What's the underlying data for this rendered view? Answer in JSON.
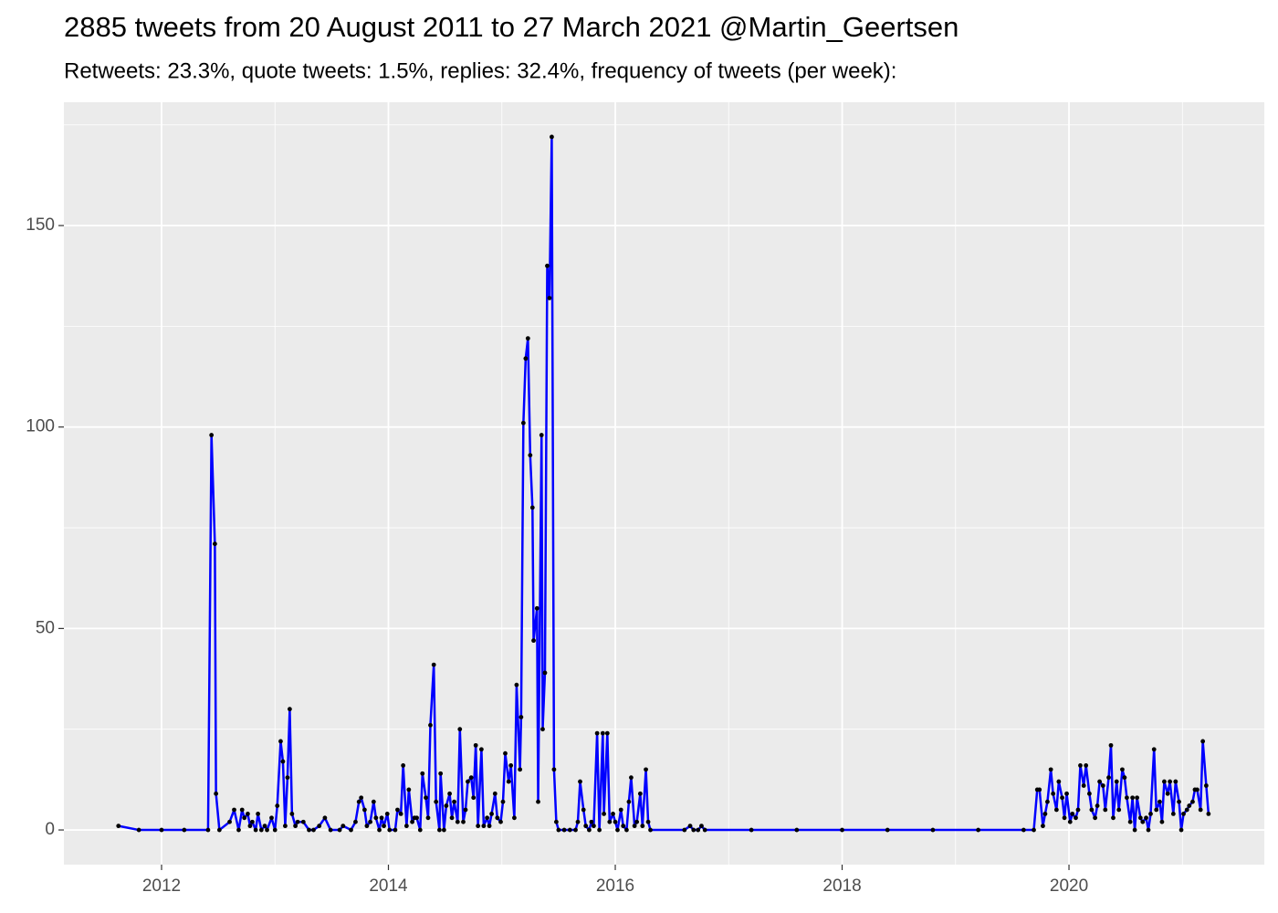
{
  "chart_data": {
    "type": "line",
    "title": "2885 tweets from 20 August 2011 to 27 March 2021 @Martin_Geertsen",
    "subtitle": "Retweets: 23.3%, quote tweets: 1.5%, replies: 32.4%, frequency of tweets (per week):",
    "x": [
      2011.62,
      2011.8,
      2012.0,
      2012.2,
      2012.41,
      2012.44,
      2012.47,
      2012.48,
      2012.51,
      2012.6,
      2012.64,
      2012.68,
      2012.71,
      2012.73,
      2012.76,
      2012.78,
      2012.8,
      2012.83,
      2012.85,
      2012.88,
      2012.91,
      2012.93,
      2012.97,
      2013.0,
      2013.02,
      2013.05,
      2013.07,
      2013.09,
      2013.11,
      2013.13,
      2013.15,
      2013.18,
      2013.2,
      2013.25,
      2013.3,
      2013.34,
      2013.39,
      2013.44,
      2013.49,
      2013.57,
      2013.6,
      2013.67,
      2013.71,
      2013.74,
      2013.76,
      2013.79,
      2013.81,
      2013.84,
      2013.87,
      2013.89,
      2013.92,
      2013.94,
      2013.96,
      2013.99,
      2014.01,
      2014.06,
      2014.08,
      2014.11,
      2014.13,
      2014.16,
      2014.18,
      2014.21,
      2014.23,
      2014.25,
      2014.28,
      2014.3,
      2014.33,
      2014.35,
      2014.37,
      2014.4,
      2014.42,
      2014.45,
      2014.46,
      2014.49,
      2014.51,
      2014.54,
      2014.56,
      2014.58,
      2014.61,
      2014.63,
      2014.66,
      2014.68,
      2014.7,
      2014.73,
      2014.75,
      2014.77,
      2014.79,
      2014.82,
      2014.84,
      2014.87,
      2014.89,
      2014.91,
      2014.94,
      2014.96,
      2014.99,
      2015.01,
      2015.03,
      2015.06,
      2015.08,
      2015.11,
      2015.13,
      2015.16,
      2015.17,
      2015.19,
      2015.21,
      2015.23,
      2015.25,
      2015.27,
      2015.28,
      2015.31,
      2015.32,
      2015.35,
      2015.36,
      2015.38,
      2015.4,
      2015.42,
      2015.44,
      2015.46,
      2015.48,
      2015.5,
      2015.55,
      2015.6,
      2015.65,
      2015.67,
      2015.69,
      2015.72,
      2015.74,
      2015.77,
      2015.79,
      2015.81,
      2015.84,
      2015.86,
      2015.89,
      2015.9,
      2015.93,
      2015.95,
      2015.98,
      2016.0,
      2016.02,
      2016.05,
      2016.07,
      2016.1,
      2016.12,
      2016.14,
      2016.17,
      2016.19,
      2016.22,
      2016.24,
      2016.27,
      2016.29,
      2016.31,
      2016.61,
      2016.66,
      2016.69,
      2016.73,
      2016.76,
      2016.79,
      2017.2,
      2017.6,
      2018.0,
      2018.4,
      2018.8,
      2019.2,
      2019.6,
      2019.69,
      2019.72,
      2019.74,
      2019.77,
      2019.79,
      2019.81,
      2019.84,
      2019.86,
      2019.89,
      2019.91,
      2019.94,
      2019.96,
      2019.98,
      2020.01,
      2020.03,
      2020.06,
      2020.08,
      2020.1,
      2020.13,
      2020.15,
      2020.18,
      2020.2,
      2020.23,
      2020.25,
      2020.27,
      2020.3,
      2020.32,
      2020.35,
      2020.37,
      2020.39,
      2020.42,
      2020.44,
      2020.47,
      2020.49,
      2020.51,
      2020.54,
      2020.56,
      2020.58,
      2020.6,
      2020.63,
      2020.65,
      2020.68,
      2020.7,
      2020.72,
      2020.75,
      2020.77,
      2020.8,
      2020.82,
      2020.84,
      2020.87,
      2020.89,
      2020.92,
      2020.94,
      2020.97,
      2020.99,
      2021.01,
      2021.04,
      2021.06,
      2021.09,
      2021.11,
      2021.13,
      2021.16,
      2021.18,
      2021.21,
      2021.23
    ],
    "values": [
      1,
      0,
      0,
      0,
      0,
      98,
      71,
      9,
      0,
      2,
      5,
      0,
      5,
      3,
      4,
      1,
      2,
      0,
      4,
      0,
      1,
      0,
      3,
      0,
      6,
      22,
      17,
      1,
      13,
      30,
      4,
      1,
      2,
      2,
      0,
      0,
      1,
      3,
      0,
      0,
      1,
      0,
      2,
      7,
      8,
      5,
      1,
      2,
      7,
      3,
      0,
      3,
      1,
      4,
      0,
      0,
      5,
      4,
      16,
      1,
      10,
      2,
      3,
      3,
      0,
      14,
      8,
      3,
      26,
      41,
      7,
      0,
      14,
      0,
      6,
      9,
      3,
      7,
      2,
      25,
      2,
      5,
      12,
      13,
      8,
      21,
      1,
      20,
      1,
      3,
      1,
      4,
      9,
      3,
      2,
      7,
      19,
      12,
      16,
      3,
      36,
      15,
      28,
      101,
      117,
      122,
      93,
      80,
      47,
      55,
      7,
      98,
      25,
      39,
      140,
      132,
      172,
      15,
      2,
      0,
      0,
      0,
      0,
      2,
      12,
      5,
      1,
      0,
      2,
      1,
      24,
      0,
      24,
      4,
      24,
      2,
      4,
      2,
      0,
      5,
      1,
      0,
      7,
      13,
      1,
      2,
      9,
      1,
      15,
      2,
      0,
      0,
      1,
      0,
      0,
      1,
      0,
      0,
      0,
      0,
      0,
      0,
      0,
      0,
      0,
      10,
      10,
      1,
      4,
      7,
      15,
      9,
      5,
      12,
      8,
      3,
      9,
      2,
      4,
      3,
      5,
      16,
      11,
      16,
      9,
      5,
      3,
      6,
      12,
      11,
      5,
      13,
      21,
      3,
      12,
      5,
      15,
      13,
      8,
      2,
      8,
      0,
      8,
      3,
      2,
      3,
      0,
      4,
      20,
      5,
      7,
      2,
      12,
      9,
      12,
      4,
      12,
      7,
      0,
      4,
      5,
      6,
      7,
      10,
      10,
      5,
      22,
      11,
      4
    ],
    "color": "#0000ff",
    "point_color": "#000000",
    "xlim": [
      2011.139,
      2021.722
    ],
    "ylim": [
      -8.6,
      180.6
    ],
    "xticks": [
      2012,
      2014,
      2016,
      2018,
      2020
    ],
    "yticks": [
      0,
      50,
      100,
      150
    ],
    "xminorticks": [
      2011,
      2013,
      2015,
      2017,
      2019,
      2021
    ],
    "yminorticks": [
      25,
      75,
      125,
      175
    ],
    "grid": true
  }
}
